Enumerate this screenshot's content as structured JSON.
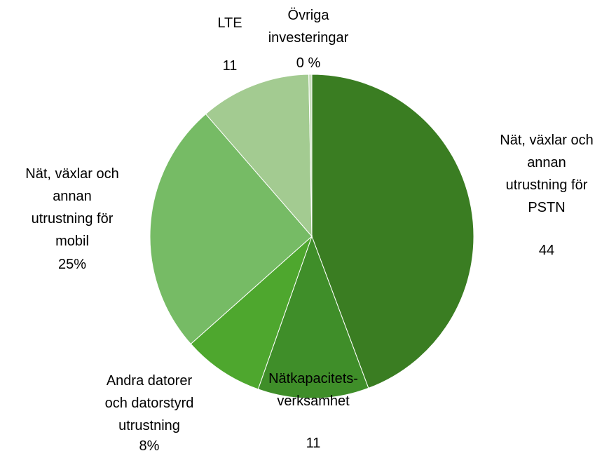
{
  "chart_data": {
    "type": "pie",
    "categories": [
      "Nät, växlar och annan utrustning för PSTN",
      "Nätkapacitets-verksamhet",
      "Andra datorer och datorstyrd utrustning",
      "Nät, växlar och annan utrustning för mobil",
      "LTE",
      "Övriga investeringar"
    ],
    "values": [
      44,
      11,
      8,
      25,
      11,
      0.3
    ],
    "value_labels": [
      "44",
      "11",
      "8%",
      "25%",
      "11",
      "0 %"
    ],
    "colors": [
      "#3a7d22",
      "#3f8e29",
      "#4ea72e",
      "#76bb65",
      "#a3cb91",
      "#c9dfbd"
    ]
  }
}
